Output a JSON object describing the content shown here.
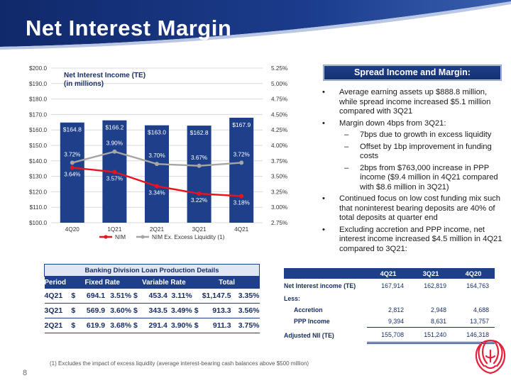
{
  "slide": {
    "title": "Net Interest Margin",
    "page_number": "8"
  },
  "chart_data": {
    "type": "bar",
    "title": "Net Interest Income (TE)",
    "subtitle": "(in millions)",
    "categories": [
      "4Q20",
      "1Q21",
      "2Q21",
      "3Q21",
      "4Q21"
    ],
    "series": [
      {
        "name": "Net Interest Income",
        "axis": "left",
        "type": "bar",
        "values": [
          164.8,
          166.2,
          163.0,
          162.8,
          167.9
        ],
        "labels": [
          "$164.8",
          "$166.2",
          "$163.0",
          "$162.8",
          "$167.9"
        ]
      },
      {
        "name": "NIM",
        "axis": "right",
        "type": "line",
        "values": [
          3.64,
          3.57,
          3.34,
          3.22,
          3.18
        ],
        "labels": [
          "3.64%",
          "3.57%",
          "3.34%",
          "3.22%",
          "3.18%"
        ]
      },
      {
        "name": "NIM Ex. Excess Liquidity (1)",
        "axis": "right",
        "type": "line",
        "values": [
          3.72,
          3.9,
          3.7,
          3.67,
          3.72
        ],
        "labels": [
          "3.72%",
          "3.90%",
          "3.70%",
          "3.67%",
          "3.72%"
        ]
      }
    ],
    "ylim_left": [
      100,
      200
    ],
    "yticks_left": [
      "$100.0",
      "$110.0",
      "$120.0",
      "$130.0",
      "$140.0",
      "$150.0",
      "$160.0",
      "$170.0",
      "$180.0",
      "$190.0",
      "$200.0"
    ],
    "ylim_right": [
      2.75,
      5.25
    ],
    "yticks_right": [
      "2.75%",
      "3.00%",
      "3.25%",
      "3.50%",
      "3.75%",
      "4.00%",
      "4.25%",
      "4.50%",
      "4.75%",
      "5.00%",
      "5.25%"
    ],
    "grid": true,
    "legend": "bottom",
    "legend_entries": [
      "NIM",
      "NIM Ex. Excess Liquidity (1)"
    ],
    "colors": {
      "bar": "#1e3f8a",
      "nim": "#e8131d",
      "nim_ex": "#a6a6a6",
      "label": "#ffffff"
    }
  },
  "spread": {
    "header": "Spread Income and Margin:",
    "bullet_marker": "•",
    "sub_marker": "–",
    "b1": "Average earning assets up $888.8 million, while spread income increased $5.1 million compared with 3Q21",
    "b2": "Margin down 4bps from 3Q21:",
    "s1": "7bps due to growth in excess liquidity",
    "s2": "Offset by 1bp improvement in funding costs",
    "s3": "2bps from $763,000 increase in PPP income ($9.4 million in 4Q21 compared with $8.6 million in 3Q21)",
    "b3": "Continued focus on low cost funding mix such that noninterest bearing deposits are 40% of total deposits at quarter end",
    "b4": "Excluding accretion and PPP income, net interest income increased $4.5 million in 4Q21 compared to 3Q21:"
  },
  "production": {
    "banner": "Banking Division Loan Production Details",
    "headers": [
      "Period",
      "Fixed Rate",
      "Variable Rate",
      "Total"
    ],
    "rows": [
      [
        "4Q21",
        "$",
        "694.1",
        "3.51%",
        "$",
        "453.4",
        "3.11%",
        "$1,147.5",
        "3.35%"
      ],
      [
        "3Q21",
        "$",
        "569.9",
        "3.60%",
        "$",
        "343.5",
        "3.49%",
        "$",
        "913.3",
        "3.56%"
      ],
      [
        "2Q21",
        "$",
        "619.9",
        "3.68%",
        "$",
        "291.4",
        "3.90%",
        "$",
        "911.3",
        "3.75%"
      ]
    ]
  },
  "nii": {
    "headers": [
      "4Q21",
      "3Q21",
      "4Q20"
    ],
    "rows": [
      {
        "label": "Net Interest income (TE)",
        "v": [
          "167,914",
          "162,819",
          "164,763"
        ]
      },
      {
        "label": "Less:",
        "v": [
          "",
          "",
          ""
        ]
      },
      {
        "label": "Accretion",
        "v": [
          "2,812",
          "2,948",
          "4,688"
        ]
      },
      {
        "label": "PPP Income",
        "v": [
          "9,394",
          "8,631",
          "13,757"
        ]
      },
      {
        "label": "Adjusted NII (TE)",
        "v": [
          "155,708",
          "151,240",
          "146,318"
        ]
      }
    ]
  },
  "footnote": "(1)   Excludes the impact of excess liquidity (average interest-bearing cash balances above $500 million)"
}
